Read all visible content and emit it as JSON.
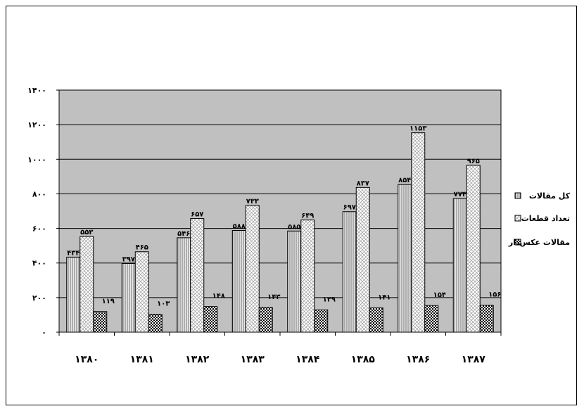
{
  "chart_data": {
    "type": "bar",
    "categories": [
      "۱۳۸۰",
      "۱۳۸۱",
      "۱۳۸۲",
      "۱۳۸۳",
      "۱۳۸۴",
      "۱۳۸۵",
      "۱۳۸۶",
      "۱۳۸۷"
    ],
    "series": [
      {
        "name": "کل مقالات",
        "values": [
          434,
          397,
          546,
          588,
          585,
          697,
          854,
          773
        ],
        "labels": [
          "۴۳۴",
          "۳۹۷",
          "۵۴۶",
          "۵۸۸",
          "۵۸۵",
          "۶۹۷",
          "۸۵۴",
          "۷۷۳"
        ]
      },
      {
        "name": "تعداد قطعات",
        "values": [
          553,
          465,
          657,
          733,
          649,
          837,
          1153,
          965
        ],
        "labels": [
          "۵۵۳",
          "۴۶۵",
          "۶۵۷",
          "۷۳۳",
          "۶۴۹",
          "۸۳۷",
          "۱۱۵۳",
          "۹۶۵"
        ]
      },
      {
        "name": "مقالات عکس‌دار",
        "values": [
          119,
          103,
          148,
          143,
          129,
          141,
          154,
          156
        ],
        "labels": [
          "۱۱۹",
          "۱۰۳",
          "۱۴۸",
          "۱۴۳",
          "۱۲۹",
          "۱۴۱",
          "۱۵۴",
          "۱۵۶"
        ]
      }
    ],
    "ylim": [
      0,
      1400
    ],
    "yticks": [
      0,
      200,
      400,
      600,
      800,
      1000,
      1200,
      1400
    ],
    "ytick_labels": [
      "۰",
      "۲۰۰",
      "۴۰۰",
      "۶۰۰",
      "۸۰۰",
      "۱۰۰۰",
      "۱۲۰۰",
      "۱۴۰۰"
    ],
    "grid": true,
    "plot_background": "#c0c0c0",
    "legend_position": "right"
  }
}
